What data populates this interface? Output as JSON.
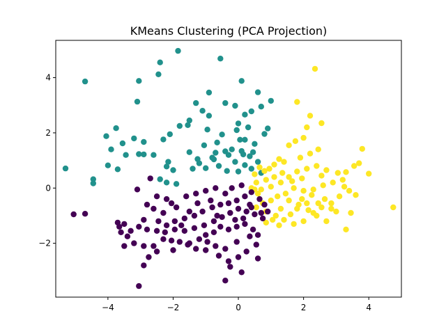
{
  "chart_data": {
    "type": "scatter",
    "title": "KMeans Clustering (PCA Projection)",
    "xlabel": "",
    "ylabel": "",
    "xlim": [
      -5.6,
      5.0
    ],
    "ylim": [
      -3.95,
      5.35
    ],
    "x_ticks": [
      -4,
      -2,
      0,
      2,
      4
    ],
    "y_ticks": [
      -2,
      0,
      2,
      4
    ],
    "x_tick_labels": [
      "−4",
      "−2",
      "0",
      "2",
      "4"
    ],
    "y_tick_labels": [
      "−2",
      "0",
      "2",
      "4"
    ],
    "grid": false,
    "legend": "none",
    "series": [
      {
        "color": "#21918c",
        "points": [
          [
            -4.7,
            3.86
          ],
          [
            -3.75,
            2.17
          ],
          [
            -3.9,
            1.4
          ],
          [
            -4.05,
            1.88
          ],
          [
            -3.55,
            1.62
          ],
          [
            -3.45,
            1.2
          ],
          [
            -3.2,
            1.8
          ],
          [
            -3.05,
            1.23
          ],
          [
            -2.9,
            1.22
          ],
          [
            -2.9,
            1.67
          ],
          [
            -3.1,
            3.13
          ],
          [
            -3.05,
            3.88
          ],
          [
            -2.45,
            4.12
          ],
          [
            -2.4,
            4.55
          ],
          [
            -1.85,
            4.97
          ],
          [
            -0.55,
            4.69
          ],
          [
            0.1,
            3.88
          ],
          [
            0.6,
            3.47
          ],
          [
            1.0,
            3.16
          ],
          [
            0.7,
            2.95
          ],
          [
            0.4,
            2.78
          ],
          [
            0.2,
            2.66
          ],
          [
            -0.1,
            2.98
          ],
          [
            -0.4,
            3.08
          ],
          [
            -0.9,
            3.46
          ],
          [
            -1.1,
            2.8
          ],
          [
            -1.3,
            3.08
          ],
          [
            -0.9,
            2.62
          ],
          [
            -1.5,
            2.45
          ],
          [
            -1.8,
            2.25
          ],
          [
            -2.1,
            1.95
          ],
          [
            -2.3,
            1.76
          ],
          [
            -2.6,
            1.2
          ],
          [
            -2.15,
            0.95
          ],
          [
            -1.55,
            2.28
          ],
          [
            -0.95,
            2.12
          ],
          [
            -0.5,
            1.94
          ],
          [
            -0.05,
            2.1
          ],
          [
            0.0,
            2.34
          ],
          [
            0.3,
            2.2
          ],
          [
            0.8,
            1.96
          ],
          [
            0.9,
            2.16
          ],
          [
            0.2,
            1.75
          ],
          [
            0.5,
            1.6
          ],
          [
            -0.2,
            1.4
          ],
          [
            -0.4,
            1.33
          ],
          [
            0.1,
            1.34
          ],
          [
            0.35,
            1.15
          ],
          [
            -0.75,
            1.04
          ],
          [
            -1.2,
            0.9
          ],
          [
            -1.5,
            1.3
          ],
          [
            -1.05,
            1.55
          ],
          [
            -0.7,
            1.28
          ],
          [
            -0.6,
            0.8
          ],
          [
            -0.1,
            0.95
          ],
          [
            0.2,
            0.83
          ],
          [
            -0.3,
            1.2
          ],
          [
            -0.8,
            1.1
          ],
          [
            -1.0,
            0.72
          ],
          [
            0.0,
            0.6
          ],
          [
            0.4,
            0.7
          ],
          [
            0.6,
            0.95
          ],
          [
            -1.4,
            0.7
          ],
          [
            -2.2,
            0.78
          ],
          [
            -2.0,
            0.65
          ],
          [
            -2.4,
            0.32
          ],
          [
            -2.2,
            0.2
          ],
          [
            -1.9,
            0.15
          ],
          [
            -3.7,
            0.68
          ],
          [
            -4.0,
            0.82
          ],
          [
            -4.45,
            0.32
          ],
          [
            -4.45,
            0.17
          ],
          [
            -5.3,
            0.71
          ],
          [
            -0.35,
            0.62
          ],
          [
            0.05,
            1.75
          ],
          [
            -1.25,
            1.05
          ],
          [
            0.15,
            1.22
          ],
          [
            0.7,
            0.55
          ],
          [
            -0.65,
            1.65
          ],
          [
            0.45,
            1.3
          ]
        ]
      },
      {
        "color": "#fde725",
        "points": [
          [
            2.35,
            4.32
          ],
          [
            1.8,
            3.12
          ],
          [
            2.2,
            2.62
          ],
          [
            2.55,
            2.35
          ],
          [
            2.1,
            2.2
          ],
          [
            2.0,
            1.82
          ],
          [
            1.75,
            1.7
          ],
          [
            1.55,
            1.55
          ],
          [
            2.45,
            1.4
          ],
          [
            2.2,
            1.25
          ],
          [
            1.9,
            1.1
          ],
          [
            1.4,
            0.95
          ],
          [
            1.25,
            1.05
          ],
          [
            1.1,
            0.85
          ],
          [
            0.95,
            0.7
          ],
          [
            0.8,
            0.62
          ],
          [
            0.65,
            0.75
          ],
          [
            0.5,
            0.5
          ],
          [
            0.85,
            0.3
          ],
          [
            0.55,
            0.2
          ],
          [
            0.4,
            0.0
          ],
          [
            0.7,
            -0.05
          ],
          [
            1.0,
            0.05
          ],
          [
            1.3,
            0.2
          ],
          [
            1.55,
            0.4
          ],
          [
            1.8,
            0.6
          ],
          [
            2.1,
            0.7
          ],
          [
            2.4,
            0.8
          ],
          [
            2.7,
            0.65
          ],
          [
            3.05,
            0.55
          ],
          [
            3.3,
            0.58
          ],
          [
            3.55,
            0.8
          ],
          [
            3.8,
            1.42
          ],
          [
            4.0,
            0.52
          ],
          [
            3.7,
            0.9
          ],
          [
            3.2,
            0.3
          ],
          [
            2.9,
            0.2
          ],
          [
            2.6,
            0.1
          ],
          [
            2.3,
            -0.05
          ],
          [
            2.0,
            -0.1
          ],
          [
            1.7,
            0.0
          ],
          [
            1.45,
            -0.2
          ],
          [
            1.2,
            -0.3
          ],
          [
            1.0,
            -0.45
          ],
          [
            0.75,
            -0.55
          ],
          [
            0.55,
            -0.7
          ],
          [
            0.85,
            -0.85
          ],
          [
            1.15,
            -1.0
          ],
          [
            1.4,
            -1.15
          ],
          [
            1.7,
            -1.3
          ],
          [
            2.0,
            -1.2
          ],
          [
            2.3,
            -0.9
          ],
          [
            2.55,
            -0.7
          ],
          [
            2.85,
            -0.55
          ],
          [
            3.1,
            -0.3
          ],
          [
            3.4,
            -0.1
          ],
          [
            3.6,
            -0.25
          ],
          [
            3.45,
            -0.9
          ],
          [
            3.3,
            -1.5
          ],
          [
            2.7,
            -1.2
          ],
          [
            2.4,
            -1.0
          ],
          [
            2.15,
            -0.8
          ],
          [
            1.85,
            -0.6
          ],
          [
            1.55,
            -0.45
          ],
          [
            1.3,
            -0.75
          ],
          [
            1.05,
            -1.15
          ],
          [
            0.85,
            -1.25
          ],
          [
            1.25,
            -1.35
          ],
          [
            1.6,
            -0.95
          ],
          [
            1.95,
            -0.4
          ],
          [
            2.25,
            -0.25
          ],
          [
            2.65,
            -0.4
          ],
          [
            4.75,
            -0.7
          ],
          [
            3.25,
            0.05
          ],
          [
            2.85,
            -0.75
          ],
          [
            2.45,
            -0.55
          ],
          [
            1.95,
            0.35
          ],
          [
            1.65,
            0.25
          ],
          [
            1.35,
            0.55
          ],
          [
            0.6,
            -0.2
          ],
          [
            0.5,
            -0.05
          ],
          [
            1.1,
            0.4
          ],
          [
            1.8,
            -0.75
          ],
          [
            2.1,
            -0.55
          ],
          [
            2.55,
            0.45
          ],
          [
            3.0,
            -0.85
          ]
        ]
      },
      {
        "color": "#440154",
        "points": [
          [
            -3.05,
            -3.55
          ],
          [
            -2.9,
            -2.8
          ],
          [
            -2.75,
            -2.5
          ],
          [
            -2.5,
            -2.3
          ],
          [
            -2.3,
            -1.85
          ],
          [
            -2.05,
            -1.9
          ],
          [
            -1.8,
            -1.95
          ],
          [
            -1.5,
            -2.0
          ],
          [
            -1.2,
            -1.85
          ],
          [
            -1.0,
            -1.7
          ],
          [
            -0.75,
            -1.6
          ],
          [
            -0.55,
            -1.4
          ],
          [
            -0.3,
            -1.5
          ],
          [
            -0.05,
            -1.4
          ],
          [
            0.2,
            -1.3
          ],
          [
            0.45,
            -1.5
          ],
          [
            0.6,
            -1.7
          ],
          [
            0.55,
            -2.05
          ],
          [
            0.25,
            -2.3
          ],
          [
            0.0,
            -2.5
          ],
          [
            -0.3,
            -2.65
          ],
          [
            -0.6,
            -2.45
          ],
          [
            -0.4,
            -2.2
          ],
          [
            -0.7,
            -2.1
          ],
          [
            -1.0,
            -2.25
          ],
          [
            -1.3,
            -2.2
          ],
          [
            -1.55,
            -2.05
          ],
          [
            -2.0,
            -2.25
          ],
          [
            -2.6,
            -2.1
          ],
          [
            -2.9,
            -2.1
          ],
          [
            -3.2,
            -2.0
          ],
          [
            -3.5,
            -2.1
          ],
          [
            -3.4,
            -1.75
          ],
          [
            -3.65,
            -1.4
          ],
          [
            -3.7,
            -1.25
          ],
          [
            -3.5,
            -1.3
          ],
          [
            -3.05,
            -1.4
          ],
          [
            -2.8,
            -1.5
          ],
          [
            -2.5,
            -1.55
          ],
          [
            -2.2,
            -1.35
          ],
          [
            -1.95,
            -1.2
          ],
          [
            -1.65,
            -1.1
          ],
          [
            -1.35,
            -1.0
          ],
          [
            -1.1,
            -0.85
          ],
          [
            -0.8,
            -0.7
          ],
          [
            -0.55,
            -0.6
          ],
          [
            -0.3,
            -0.55
          ],
          [
            -0.05,
            -0.45
          ],
          [
            0.2,
            -0.3
          ],
          [
            0.4,
            -0.15
          ],
          [
            0.65,
            -0.4
          ],
          [
            0.8,
            -0.6
          ],
          [
            0.9,
            -0.85
          ],
          [
            0.75,
            -1.1
          ],
          [
            0.5,
            -0.95
          ],
          [
            0.25,
            -0.85
          ],
          [
            0.0,
            -0.75
          ],
          [
            -0.25,
            -0.9
          ],
          [
            -0.5,
            -1.05
          ],
          [
            -0.75,
            -1.2
          ],
          [
            -1.05,
            -1.35
          ],
          [
            -1.35,
            -1.45
          ],
          [
            -1.65,
            -1.55
          ],
          [
            -1.95,
            -1.5
          ],
          [
            -2.25,
            -1.6
          ],
          [
            -2.45,
            -1.2
          ],
          [
            -2.6,
            -0.75
          ],
          [
            -2.8,
            -0.6
          ],
          [
            -2.5,
            -0.3
          ],
          [
            -2.2,
            -0.4
          ],
          [
            -1.9,
            -0.7
          ],
          [
            -1.6,
            -0.3
          ],
          [
            -1.3,
            -0.2
          ],
          [
            -1.0,
            -0.1
          ],
          [
            -0.7,
            0.0
          ],
          [
            -0.4,
            -0.2
          ],
          [
            -0.2,
            0.0
          ],
          [
            0.1,
            0.1
          ],
          [
            0.35,
            -0.6
          ],
          [
            -0.1,
            -1.15
          ],
          [
            -0.85,
            -0.45
          ],
          [
            -1.5,
            -0.85
          ],
          [
            -2.3,
            -0.9
          ],
          [
            -2.7,
            0.35
          ],
          [
            -3.1,
            -0.05
          ],
          [
            -3.6,
            -1.6
          ],
          [
            -4.7,
            -0.93
          ],
          [
            -5.05,
            -0.95
          ],
          [
            -0.4,
            -3.35
          ],
          [
            0.1,
            -3.05
          ],
          [
            0.6,
            -2.55
          ],
          [
            -0.05,
            -1.95
          ],
          [
            0.35,
            -1.75
          ],
          [
            -0.95,
            -1.95
          ],
          [
            -1.75,
            -1.35
          ],
          [
            -2.9,
            -1.15
          ],
          [
            -0.65,
            -1.0
          ],
          [
            0.15,
            -1.1
          ],
          [
            0.7,
            -0.9
          ],
          [
            -1.25,
            -0.55
          ],
          [
            -2.05,
            -0.55
          ],
          [
            -3.3,
            -1.55
          ],
          [
            -0.25,
            -2.85
          ],
          [
            0.4,
            -0.7
          ]
        ]
      }
    ]
  }
}
